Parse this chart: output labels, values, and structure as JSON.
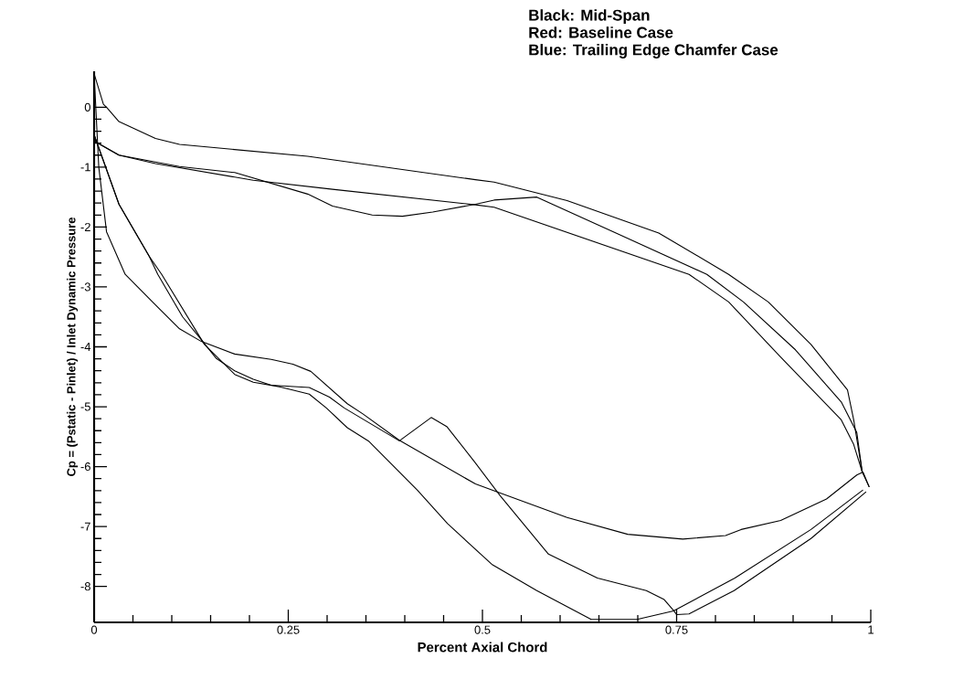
{
  "chart_data": {
    "type": "line",
    "xlabel": "Percent Axial Chord",
    "ylabel": "Cp = (Pstatic - Pinlet) / Inlet Dynamic Pressure",
    "annotations": [
      "Black: Mid-Span",
      "Red:  Baseline Case",
      "Blue:  Trailing Edge Chamfer Case"
    ],
    "xlim": [
      0,
      1
    ],
    "ylim": [
      -8.6,
      0.6
    ],
    "xticks": [
      0,
      0.25,
      0.5,
      0.75,
      1
    ],
    "yticks": [
      -8,
      -7,
      -6,
      -5,
      -4,
      -3,
      -2,
      -1,
      0
    ],
    "series": [
      {
        "color": "#000000",
        "x": [
          0.0,
          0.012,
          0.016,
          0.032,
          0.079,
          0.11,
          0.275,
          0.491,
          0.515,
          0.609,
          0.727,
          0.817,
          0.868,
          0.923,
          0.97,
          0.978,
          0.989,
          0.998
        ],
        "values": [
          0.56,
          0.05,
          0.0,
          -0.24,
          -0.52,
          -0.62,
          -0.82,
          -1.21,
          -1.25,
          -1.56,
          -2.1,
          -2.79,
          -3.25,
          -3.96,
          -4.72,
          -5.22,
          -6.09,
          -6.34
        ]
      },
      {
        "color": "#000000",
        "x": [
          0.0,
          0.006,
          0.016,
          0.04,
          0.079,
          0.11,
          0.138,
          0.181,
          0.228,
          0.256,
          0.279,
          0.326,
          0.346,
          0.393,
          0.491,
          0.523,
          0.609,
          0.687,
          0.758,
          0.813,
          0.833,
          0.884,
          0.943,
          0.982,
          0.99,
          0.998
        ],
        "values": [
          0.56,
          -1.0,
          -2.08,
          -2.79,
          -3.3,
          -3.7,
          -3.91,
          -4.12,
          -4.21,
          -4.29,
          -4.41,
          -4.95,
          -5.12,
          -5.56,
          -6.29,
          -6.44,
          -6.85,
          -7.13,
          -7.21,
          -7.15,
          -7.05,
          -6.9,
          -6.54,
          -6.14,
          -6.09,
          -6.34
        ]
      },
      {
        "color": "#000000",
        "x": [
          0.0,
          0.002,
          0.032,
          0.079,
          0.205,
          0.307,
          0.491,
          0.515,
          0.766,
          0.817,
          0.883,
          0.962,
          0.978,
          0.989
        ],
        "values": [
          -0.46,
          -0.58,
          -0.8,
          -0.94,
          -1.22,
          -1.37,
          -1.63,
          -1.67,
          -2.79,
          -3.25,
          -4.16,
          -5.22,
          -5.63,
          -6.09
        ]
      },
      {
        "color": "#000000",
        "x": [
          0.0,
          0.032,
          0.071,
          0.082,
          0.114,
          0.138,
          0.157,
          0.181,
          0.205,
          0.228,
          0.277,
          0.303,
          0.322,
          0.393,
          0.434,
          0.454,
          0.491,
          0.523,
          0.585,
          0.648,
          0.711,
          0.734,
          0.746,
          0.75,
          0.766,
          0.824,
          0.923,
          0.994
        ],
        "values": [
          -0.46,
          -1.62,
          -2.49,
          -2.79,
          -3.5,
          -3.88,
          -4.19,
          -4.4,
          -4.54,
          -4.64,
          -4.68,
          -4.84,
          -5.02,
          -5.57,
          -5.18,
          -5.33,
          -5.94,
          -6.49,
          -7.46,
          -7.86,
          -8.07,
          -8.22,
          -8.4,
          -8.47,
          -8.46,
          -8.07,
          -7.2,
          -6.42
        ]
      },
      {
        "color": "#000000",
        "x": [
          0.0,
          0.002,
          0.032,
          0.11,
          0.181,
          0.275,
          0.307,
          0.358,
          0.397,
          0.436,
          0.491,
          0.515,
          0.57,
          0.789,
          0.836,
          0.903,
          0.962,
          0.982,
          0.989
        ],
        "values": [
          -0.46,
          -0.58,
          -0.8,
          -0.99,
          -1.09,
          -1.45,
          -1.65,
          -1.8,
          -1.82,
          -1.75,
          -1.62,
          -1.55,
          -1.5,
          -2.79,
          -3.25,
          -4.05,
          -4.92,
          -5.43,
          -6.09
        ]
      },
      {
        "color": "#000000",
        "x": [
          0.0,
          0.032,
          0.071,
          0.087,
          0.142,
          0.181,
          0.205,
          0.24,
          0.277,
          0.299,
          0.326,
          0.354,
          0.416,
          0.455,
          0.512,
          0.57,
          0.64,
          0.699,
          0.746,
          0.825,
          0.923,
          0.99
        ],
        "values": [
          -0.46,
          -1.62,
          -2.49,
          -2.79,
          -3.96,
          -4.46,
          -4.59,
          -4.67,
          -4.79,
          -5.02,
          -5.35,
          -5.58,
          -6.39,
          -6.95,
          -7.63,
          -8.07,
          -8.55,
          -8.55,
          -8.41,
          -7.86,
          -7.05,
          -6.39
        ]
      }
    ]
  }
}
